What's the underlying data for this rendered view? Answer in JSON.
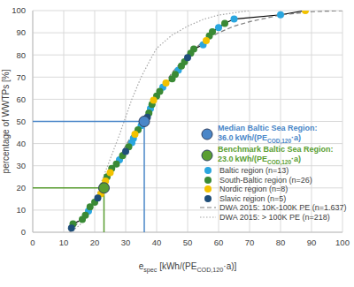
{
  "chart_data": {
    "type": "scatter",
    "x_label": [
      {
        "text": "e"
      },
      {
        "text": "spec",
        "sub": true
      },
      {
        "text": " [kWh/(PE"
      },
      {
        "text": "COD,120",
        "sub": true
      },
      {
        "text": "·a)]"
      }
    ],
    "y_label": "percentage of WWTPs [%]",
    "xlim": [
      0,
      100
    ],
    "xticks": [
      0,
      10,
      20,
      30,
      40,
      50,
      60,
      70,
      80,
      90,
      100
    ],
    "ylim": [
      0,
      100
    ],
    "yticks": [
      0,
      10,
      20,
      30,
      40,
      50,
      60,
      70,
      80,
      90,
      100
    ],
    "grid": true,
    "legend": "right",
    "series": [
      {
        "type": "line",
        "color": "#000000",
        "line_style": "solid",
        "x": [
          12.5,
          13,
          16,
          17,
          18,
          18.5,
          20,
          21,
          22,
          22.5,
          23,
          23.5,
          24,
          25,
          25.5,
          27,
          28,
          29,
          30,
          31,
          32,
          32.5,
          33,
          34,
          35,
          36,
          37,
          37.5,
          38,
          38.5,
          39,
          40,
          41,
          42,
          43,
          45,
          46,
          47,
          48,
          49,
          50,
          51,
          52,
          55,
          56,
          57,
          58,
          60,
          62,
          65,
          80,
          88
        ],
        "y": [
          1.9,
          3.8,
          5.8,
          7.7,
          9.6,
          11.5,
          13.5,
          15.4,
          17.3,
          19.2,
          21.2,
          23.1,
          25,
          26.9,
          28.8,
          30.8,
          32.7,
          34.6,
          36.5,
          38.5,
          40.4,
          42.3,
          44.2,
          46.2,
          48.1,
          50,
          51.9,
          53.8,
          55.8,
          57.7,
          59.6,
          61.5,
          63.5,
          65.4,
          67.3,
          69.2,
          71.2,
          73.1,
          75,
          76.9,
          78.8,
          80.8,
          82.7,
          84.6,
          86.5,
          88.5,
          90.4,
          92.3,
          94.2,
          96.2,
          98.1,
          100
        ]
      },
      {
        "name": "Baltic region (n=13)",
        "color": "#2aa6df",
        "marker": "circle",
        "x": [
          18,
          28,
          32,
          32.5,
          35,
          36,
          38,
          42,
          47,
          55,
          60,
          65,
          80
        ],
        "y": [
          9.6,
          32.7,
          40.4,
          42.3,
          48.1,
          50,
          55.8,
          65.4,
          73.1,
          84.6,
          92.3,
          96.2,
          98.1
        ]
      },
      {
        "name": "South-Baltic region (n=26)",
        "color": "#3a8a35",
        "marker": "circle",
        "x": [
          13,
          16,
          17,
          18.5,
          20,
          22.5,
          23,
          24,
          25.5,
          27,
          29,
          31,
          34,
          37.5,
          38.5,
          40,
          41,
          45,
          46,
          48,
          49,
          51,
          52,
          57,
          58,
          62
        ],
        "y": [
          3.8,
          5.8,
          7.7,
          11.5,
          13.5,
          19.2,
          21.2,
          25,
          28.8,
          30.8,
          34.6,
          38.5,
          46.2,
          53.8,
          57.7,
          61.5,
          63.5,
          69.2,
          71.2,
          75,
          76.9,
          80.8,
          82.7,
          88.5,
          90.4,
          94.2
        ]
      },
      {
        "name": "Nordic region (n=8)",
        "color": "#f2c200",
        "marker": "circle",
        "x": [
          22,
          23.5,
          25,
          33,
          39,
          43,
          56,
          88
        ],
        "y": [
          17.3,
          23.1,
          26.9,
          44.2,
          59.6,
          67.3,
          86.5,
          100
        ]
      },
      {
        "name": "Slavic region (n=5)",
        "color": "#1f4e79",
        "marker": "circle",
        "x": [
          12.5,
          21,
          30,
          37,
          50
        ],
        "y": [
          1.9,
          15.4,
          36.5,
          51.9,
          78.8
        ]
      },
      {
        "name": "DWA 2015: 10K-100K PE (n=1.637)",
        "type": "line",
        "color": "#7f7f7f",
        "line_style": "dashed",
        "x": [
          12,
          15,
          18,
          20,
          22,
          25,
          28,
          30,
          33,
          35,
          38,
          40,
          45,
          50,
          55,
          60,
          65,
          70,
          80,
          90,
          100
        ],
        "y": [
          0,
          5,
          10,
          14,
          19,
          27,
          34,
          39,
          46,
          50,
          57,
          62,
          72,
          80,
          86,
          90,
          93,
          95,
          98,
          99.5,
          100
        ]
      },
      {
        "name": "DWA 2015: > 100K PE (n=218)",
        "type": "line",
        "color": "#a6a6a6",
        "line_style": "dotted",
        "x": [
          12,
          15,
          18,
          20,
          22,
          25,
          28,
          30,
          32,
          35,
          38,
          40,
          45,
          50,
          55,
          60,
          70
        ],
        "y": [
          0,
          3,
          8,
          14,
          22,
          33,
          44,
          52,
          60,
          70,
          78,
          83,
          89,
          93,
          96,
          98,
          100
        ]
      }
    ],
    "annotations": [
      {
        "label": "Median Baltic Sea Region:",
        "x": {
          "value": 36,
          "label": "36.0"
        },
        "y": 50,
        "unit": [
          {
            "text": "kWh/(PE"
          },
          {
            "text": "COD,120",
            "sub": true
          },
          {
            "text": "·a)"
          }
        ],
        "color": "#4a86c8"
      },
      {
        "label": "Benchmark Baltic Sea Region:",
        "x": {
          "value": 23,
          "label": "23.0"
        },
        "y": 20,
        "unit": [
          {
            "text": "kWh/(PE"
          },
          {
            "text": "COD,120",
            "sub": true
          },
          {
            "text": "·a)"
          }
        ],
        "color": "#5a9e32"
      }
    ]
  }
}
